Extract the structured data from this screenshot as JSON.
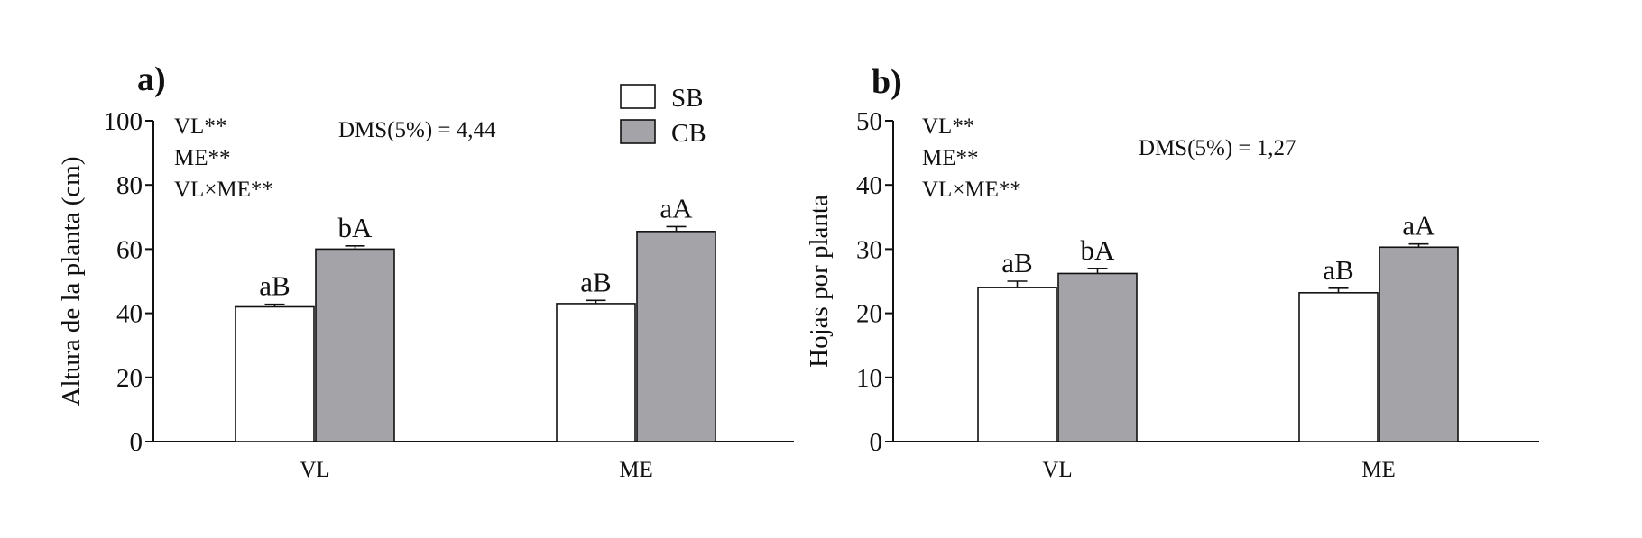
{
  "chart_data": [
    {
      "type": "bar",
      "panel_label": "a)",
      "ylabel": "Altura de la planta (cm)",
      "ylim": [
        0,
        100
      ],
      "yticks": [
        0,
        20,
        40,
        60,
        80,
        100
      ],
      "categories": [
        "VL",
        "ME"
      ],
      "series": [
        {
          "name": "SB",
          "values": [
            42,
            43
          ],
          "errors": [
            0.8,
            1.0
          ],
          "letters": [
            "aB",
            "aB"
          ]
        },
        {
          "name": "CB",
          "values": [
            60,
            65.5
          ],
          "errors": [
            1.0,
            1.5
          ],
          "letters": [
            "bA",
            "aA"
          ]
        }
      ],
      "significance": [
        "VL**",
        "ME**",
        "VL×ME**"
      ],
      "dms": "DMS(5%) = 4,44"
    },
    {
      "type": "bar",
      "panel_label": "b)",
      "ylabel": "Hojas por planta",
      "ylim": [
        0,
        50
      ],
      "yticks": [
        0,
        10,
        20,
        30,
        40,
        50
      ],
      "categories": [
        "VL",
        "ME"
      ],
      "series": [
        {
          "name": "SB",
          "values": [
            24,
            23.2
          ],
          "errors": [
            1.0,
            0.7
          ],
          "letters": [
            "aB",
            "aB"
          ]
        },
        {
          "name": "CB",
          "values": [
            26.2,
            30.3
          ],
          "errors": [
            0.8,
            0.5
          ],
          "letters": [
            "bA",
            "aA"
          ]
        }
      ],
      "significance": [
        "VL**",
        "ME**",
        "VL×ME**"
      ],
      "dms": "DMS(5%) = 1,27"
    }
  ],
  "legend": [
    {
      "label": "SB",
      "color": "#ffffff"
    },
    {
      "label": "CB",
      "color": "#a3a3a8"
    }
  ]
}
